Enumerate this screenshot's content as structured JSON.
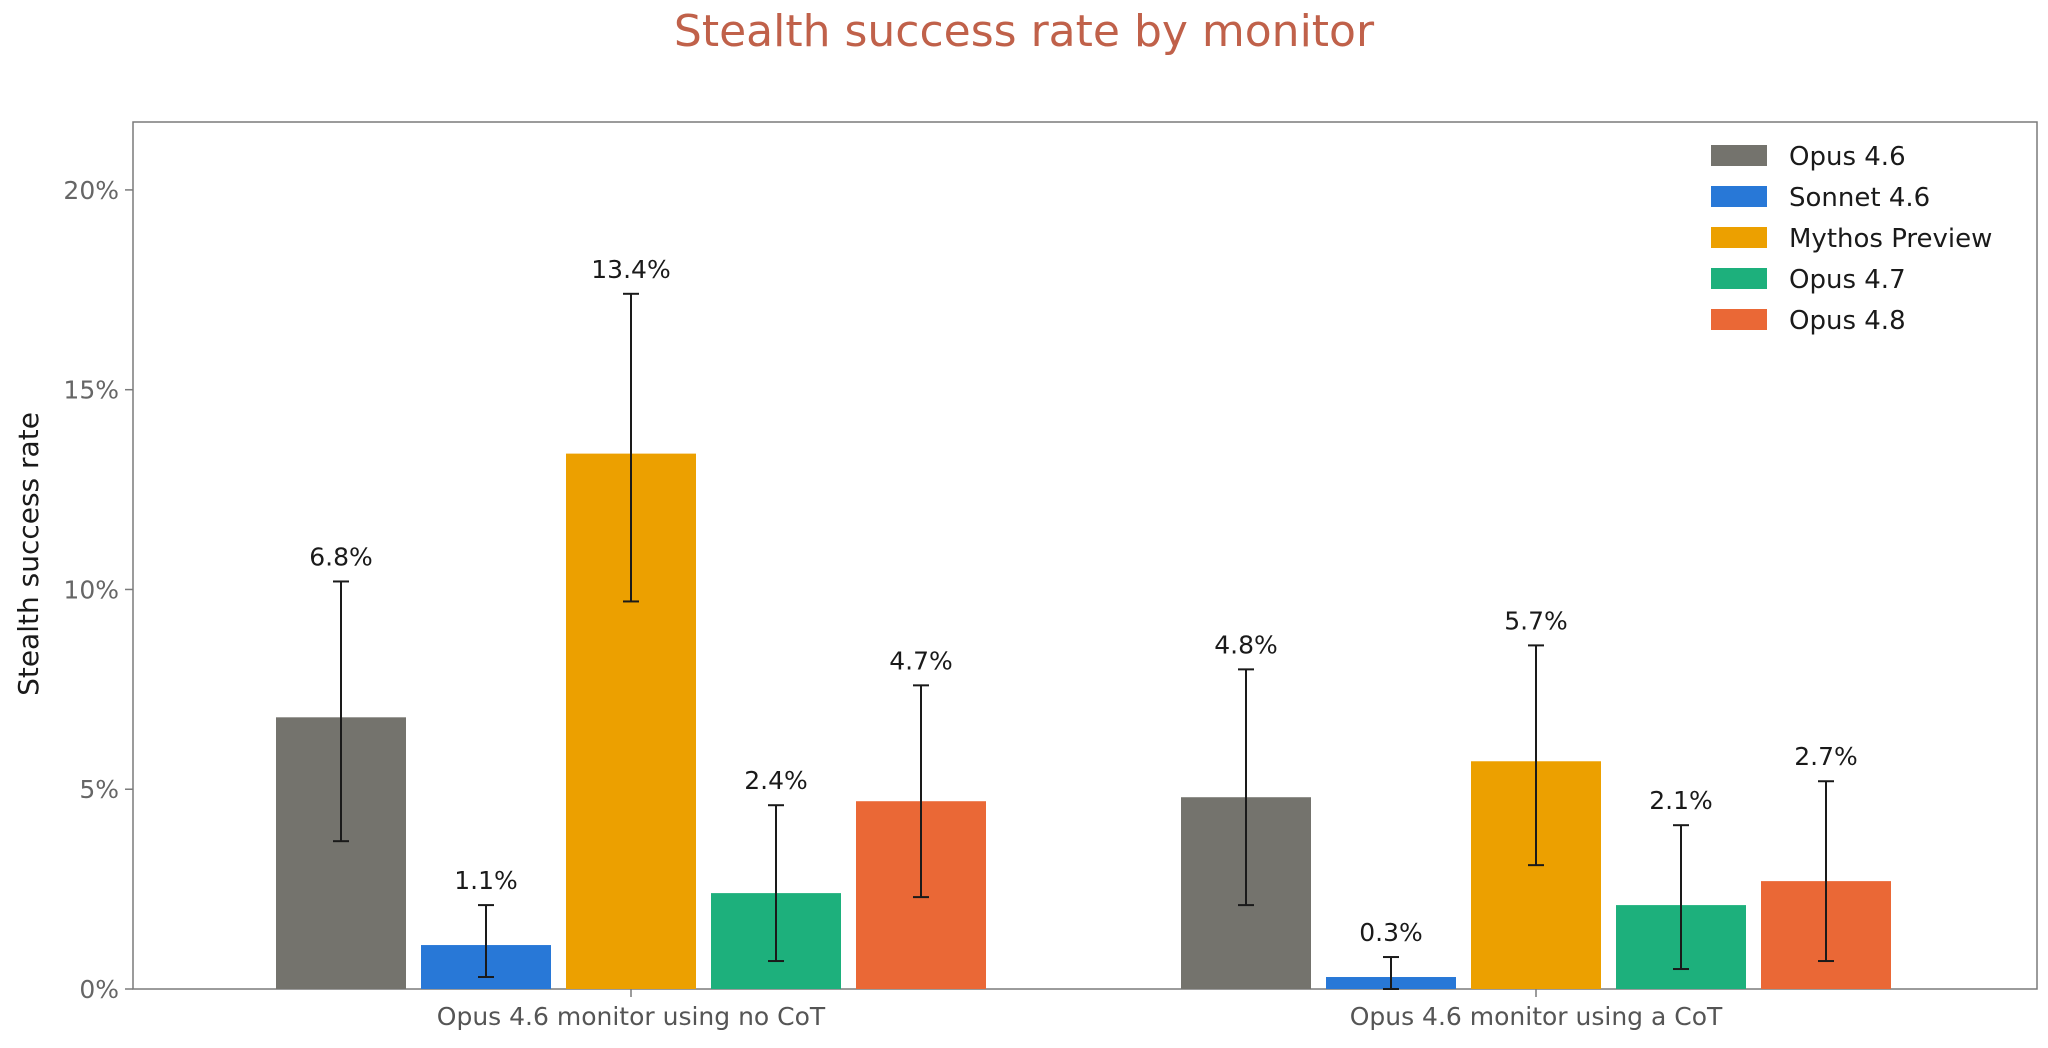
{
  "chart_data": {
    "type": "bar",
    "title": "Stealth success rate by monitor",
    "ylabel": "Stealth success rate",
    "xlabel": "",
    "ylim": [
      0,
      21.7
    ],
    "yticks": [
      0,
      5,
      10,
      15,
      20
    ],
    "ytick_labels": [
      "0%",
      "5%",
      "10%",
      "15%",
      "20%"
    ],
    "categories": [
      "Opus 4.6 monitor using no CoT",
      "Opus 4.6 monitor using a CoT"
    ],
    "legend_position": "top-right",
    "grid": false,
    "series": [
      {
        "name": "Opus 4.6",
        "color": "#74736d",
        "values": [
          6.8,
          4.8
        ],
        "labels": [
          "6.8%",
          "4.8%"
        ],
        "err_low": [
          3.7,
          2.1
        ],
        "err_high": [
          10.2,
          8.0
        ]
      },
      {
        "name": "Sonnet 4.6",
        "color": "#2878d7",
        "values": [
          1.1,
          0.3
        ],
        "labels": [
          "1.1%",
          "0.3%"
        ],
        "err_low": [
          0.3,
          0.0
        ],
        "err_high": [
          2.1,
          0.8
        ]
      },
      {
        "name": "Mythos Preview",
        "color": "#eca000",
        "values": [
          13.4,
          5.7
        ],
        "labels": [
          "13.4%",
          "5.7%"
        ],
        "err_low": [
          9.7,
          3.1
        ],
        "err_high": [
          17.4,
          8.6
        ]
      },
      {
        "name": "Opus 4.7",
        "color": "#1db07c",
        "values": [
          2.4,
          2.1
        ],
        "labels": [
          "2.4%",
          "2.1%"
        ],
        "err_low": [
          0.7,
          0.5
        ],
        "err_high": [
          4.6,
          4.1
        ]
      },
      {
        "name": "Opus 4.8",
        "color": "#ea6836",
        "values": [
          4.7,
          2.7
        ],
        "labels": [
          "4.7%",
          "2.7%"
        ],
        "err_low": [
          2.3,
          0.7
        ],
        "err_high": [
          7.6,
          5.2
        ]
      }
    ]
  }
}
